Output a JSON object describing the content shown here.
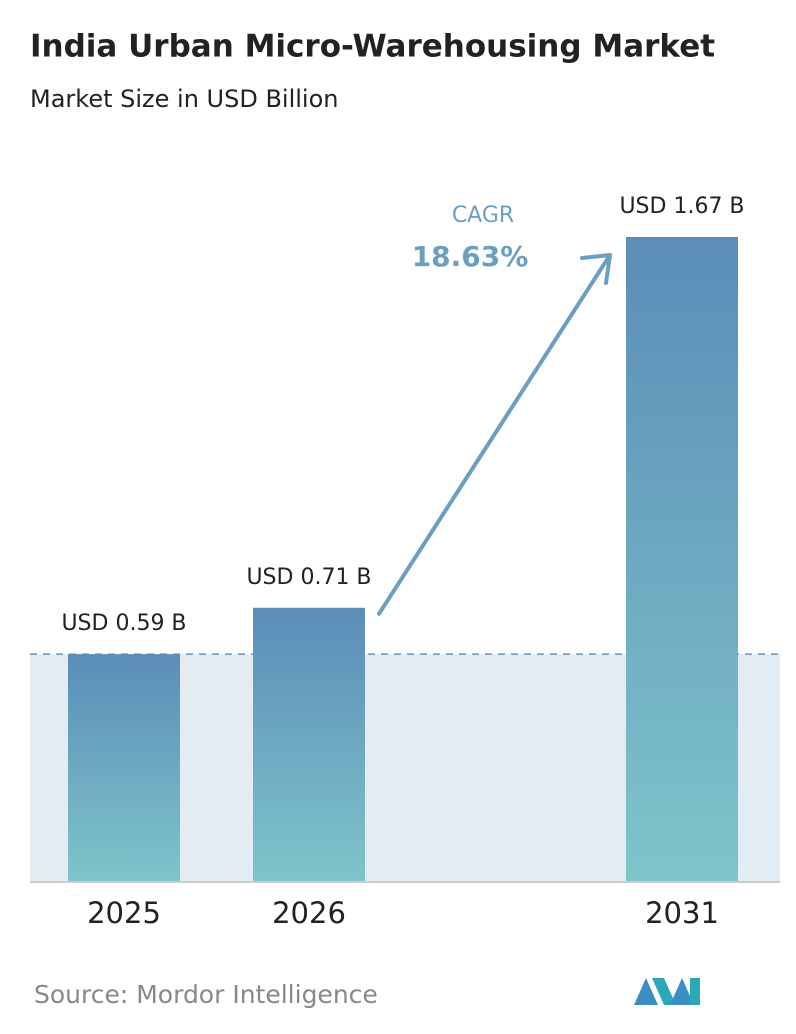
{
  "chart_data": {
    "type": "bar",
    "title": "India Urban Micro-Warehousing Market",
    "subtitle": "Market Size in USD Billion",
    "categories": [
      "2025",
      "2026",
      "2031"
    ],
    "values": [
      0.59,
      0.71,
      1.67
    ],
    "value_labels": [
      "USD 0.59 B",
      "USD 0.71 B",
      "USD 1.67 B"
    ],
    "gradient": [
      "#5b8db8",
      "#7ec5ca"
    ],
    "annotation": {
      "label": "CAGR",
      "value": "18.63%",
      "color": "#6b9fc2"
    },
    "source": "Source:  Mordor Intelligence"
  }
}
